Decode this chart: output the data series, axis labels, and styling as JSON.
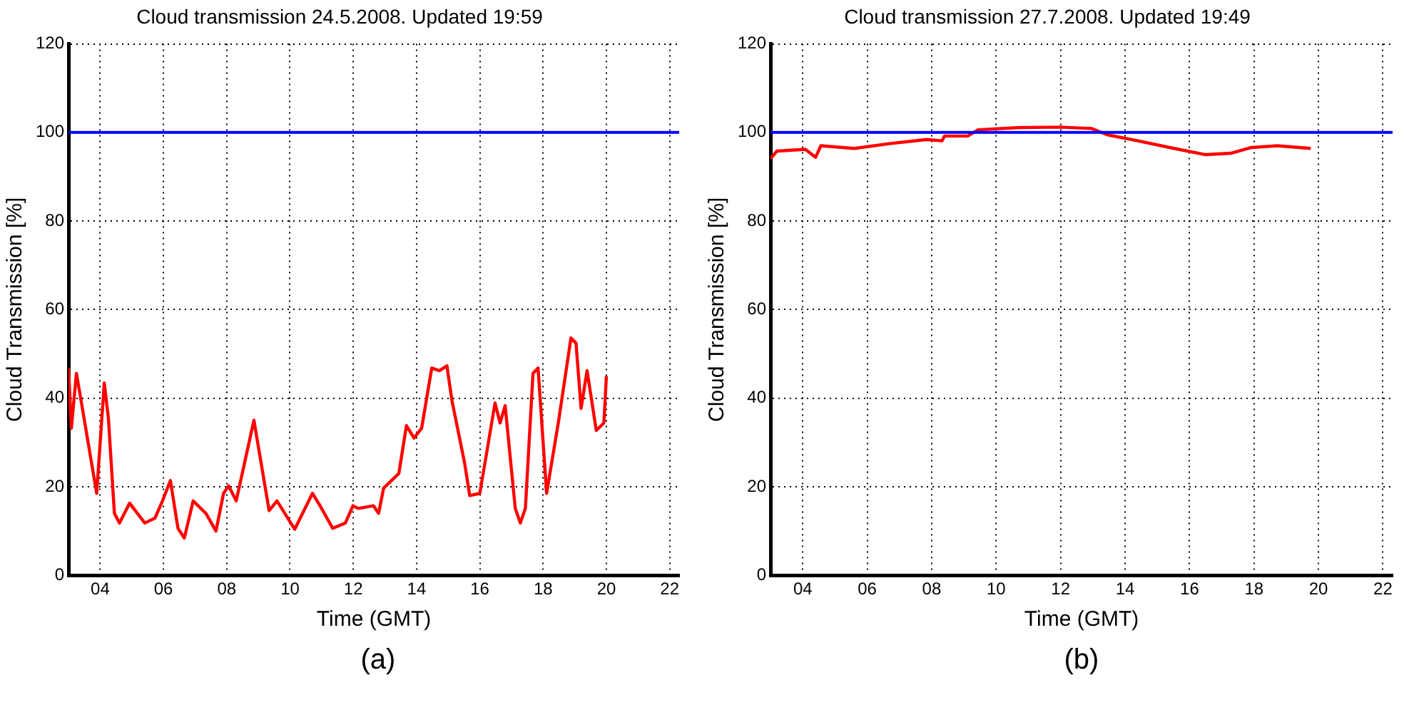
{
  "chart_data": [
    {
      "type": "line",
      "title": "Cloud transmission 24.5.2008. Updated 19:59",
      "xlabel": "Time (GMT)",
      "ylabel": "Cloud Transmission [%]",
      "series": [
        {
          "color": "#ff0000",
          "x": [
            3.0,
            3.09,
            3.25,
            3.41,
            3.89,
            4.13,
            4.26,
            4.45,
            4.61,
            4.93,
            5.41,
            5.73,
            5.97,
            6.22,
            6.46,
            6.66,
            6.94,
            7.34,
            7.66,
            7.9,
            8.06,
            8.3,
            8.86,
            9.34,
            9.59,
            10.15,
            10.71,
            10.95,
            11.35,
            11.75,
            11.99,
            12.16,
            12.64,
            12.8,
            12.96,
            13.44,
            13.68,
            13.92,
            14.16,
            14.48,
            14.72,
            14.96,
            15.12,
            15.52,
            15.68,
            16.0,
            16.48,
            16.64,
            16.8,
            17.12,
            17.28,
            17.44,
            17.68,
            17.84,
            18.11,
            18.48,
            18.88,
            19.04,
            19.2,
            19.39,
            19.68,
            19.92,
            20.0
          ],
          "values": [
            46.8,
            33.2,
            45.6,
            38.9,
            18.5,
            43.4,
            35.5,
            14.0,
            11.8,
            16.3,
            11.8,
            12.9,
            16.8,
            21.4,
            10.6,
            8.4,
            16.8,
            14.0,
            10.0,
            18.5,
            20.2,
            16.8,
            35.0,
            14.6,
            16.8,
            10.4,
            18.5,
            15.7,
            10.6,
            11.8,
            15.7,
            15.1,
            15.7,
            14.0,
            19.7,
            23.0,
            33.8,
            31.0,
            33.2,
            46.8,
            46.2,
            47.3,
            39.4,
            25.3,
            18.0,
            18.5,
            38.9,
            34.4,
            38.3,
            15.1,
            11.8,
            15.1,
            45.6,
            46.8,
            18.5,
            34.4,
            53.6,
            52.4,
            37.7,
            46.2,
            32.7,
            34.4,
            45.0
          ]
        }
      ],
      "xlim": [
        3,
        22.3
      ],
      "xticks": [
        {
          "value": 4,
          "label": "04"
        },
        {
          "value": 6,
          "label": "06"
        },
        {
          "value": 8,
          "label": "08"
        },
        10,
        12,
        14,
        16,
        18,
        20,
        22
      ],
      "ylim": [
        0,
        120
      ],
      "yticks": [
        0,
        20,
        40,
        60,
        80,
        100,
        120
      ],
      "grid": true,
      "ref_lines": [
        {
          "axis": "y",
          "value": 100,
          "color": "#0000ff"
        }
      ],
      "annotations": [
        "(a)"
      ]
    },
    {
      "type": "line",
      "title": "Cloud transmission 27.7.2008. Updated 19:49",
      "xlabel": "Time (GMT)",
      "ylabel": "Cloud Transmission [%]",
      "series": [
        {
          "color": "#ff0000",
          "x": [
            3.0,
            3.2,
            4.08,
            4.4,
            4.56,
            5.6,
            6.72,
            7.84,
            8.32,
            8.4,
            9.12,
            9.44,
            10.72,
            12.0,
            12.96,
            13.44,
            14.4,
            15.52,
            16.48,
            17.28,
            17.92,
            18.72,
            19.76
          ],
          "values": [
            94.1,
            95.8,
            96.2,
            94.4,
            97.0,
            96.4,
            97.5,
            98.4,
            98.1,
            99.2,
            99.2,
            100.6,
            101.1,
            101.2,
            100.9,
            99.5,
            98.1,
            96.4,
            95.0,
            95.3,
            96.6,
            97.0,
            96.4
          ]
        }
      ],
      "xlim": [
        3,
        22.3
      ],
      "xticks": [
        {
          "value": 4,
          "label": "04"
        },
        {
          "value": 6,
          "label": "06"
        },
        {
          "value": 8,
          "label": "08"
        },
        10,
        12,
        14,
        16,
        18,
        20,
        22
      ],
      "ylim": [
        0,
        120
      ],
      "yticks": [
        0,
        20,
        40,
        60,
        80,
        100,
        120
      ],
      "grid": true,
      "ref_lines": [
        {
          "axis": "y",
          "value": 100,
          "color": "#0000ff"
        }
      ],
      "annotations": [
        "(b)"
      ]
    }
  ]
}
